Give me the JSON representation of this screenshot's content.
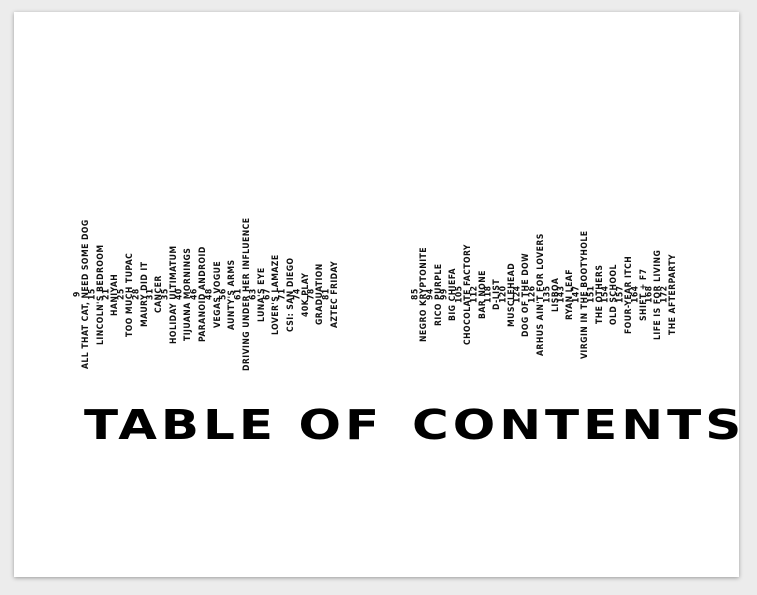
{
  "heading": {
    "left": "TABLE OF",
    "right": "CONTENTS"
  },
  "contents": {
    "left": [
      {
        "page": "9",
        "title": "ALL THAT CAT, NEED SOME DOG"
      },
      {
        "page": "15",
        "title": "LINCOLN'S BEDROOM"
      },
      {
        "page": "21",
        "title": "HANIYAH"
      },
      {
        "page": "25",
        "title": "TOO MUCH TUPAC"
      },
      {
        "page": "28",
        "title": "MAURY DID IT"
      },
      {
        "page": "31",
        "title": "CANCER"
      },
      {
        "page": "35",
        "title": "HOLIDAY ULTIMATUM"
      },
      {
        "page": "40",
        "title": "TIJUANA MORNINGS"
      },
      {
        "page": "46",
        "title": "PARANOID ANDROID"
      },
      {
        "page": "48",
        "title": "VEGAS VOGUE"
      },
      {
        "page": "56",
        "title": "AUNTY'S ARMS"
      },
      {
        "page": "61",
        "title": "DRIVING UNDER HER INFLUENCE"
      },
      {
        "page": "63",
        "title": "LUNA'S EYE"
      },
      {
        "page": "67",
        "title": "LOVER'S LAMAZE"
      },
      {
        "page": "71",
        "title": "CSI: SAN DIEGO"
      },
      {
        "page": "74",
        "title": "40K PLAY"
      },
      {
        "page": "78",
        "title": "GRADUATION"
      },
      {
        "page": "81",
        "title": "AZTEC FRIDAY"
      }
    ],
    "right": [
      {
        "page": "85",
        "title": "NEGRO KRYPTONITE"
      },
      {
        "page": "94",
        "title": "RICO PURPLE"
      },
      {
        "page": "99",
        "title": "BIG CHIEFA"
      },
      {
        "page": "105",
        "title": "CHOCOLATE FACTORY"
      },
      {
        "page": "112",
        "title": "BAR NONE"
      },
      {
        "page": "118",
        "title": "D-LIST"
      },
      {
        "page": "120",
        "title": "MUSCLEHEAD"
      },
      {
        "page": "124",
        "title": "DOG OF THE DOW"
      },
      {
        "page": "126",
        "title": "ARHUS AIN'T FOR LOVERS"
      },
      {
        "page": "135",
        "title": "LISBOA"
      },
      {
        "page": "143",
        "title": "RYAN LEAF"
      },
      {
        "page": "147",
        "title": "VIRGIN IN THE BOOTYHOLE"
      },
      {
        "page": "151",
        "title": "THE OTHERS"
      },
      {
        "page": "154",
        "title": "OLD SCHOOL"
      },
      {
        "page": "157",
        "title": "FOUR-YEAR ITCH"
      },
      {
        "page": "164",
        "title": "SHIFT + F7"
      },
      {
        "page": "168",
        "title": "LIFE IS FOR LIVING"
      },
      {
        "page": "172",
        "title": "THE AFTERPARTY"
      }
    ]
  }
}
